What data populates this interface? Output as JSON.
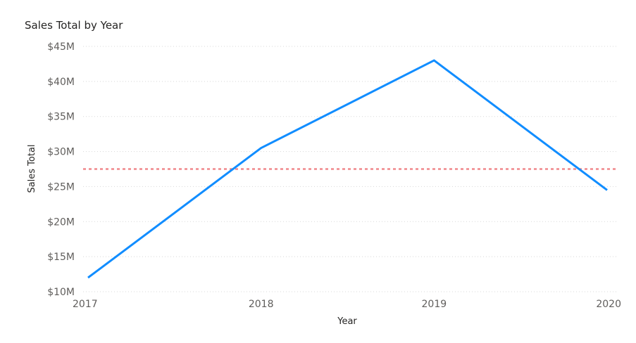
{
  "chart_data": {
    "type": "line",
    "title": "Sales Total by Year",
    "xlabel": "Year",
    "ylabel": "Sales Total",
    "categories": [
      "2017",
      "2018",
      "2019",
      "2020"
    ],
    "series": [
      {
        "values": [
          12000000,
          30500000,
          43000000,
          24500000
        ],
        "color": "#118DFF"
      }
    ],
    "reference_line": {
      "value": 27500000,
      "color": "#F0888C",
      "style": "dashed"
    },
    "ylim": [
      10000000,
      45000000
    ],
    "yticks": [
      10000000,
      15000000,
      20000000,
      25000000,
      30000000,
      35000000,
      40000000,
      45000000
    ],
    "ytick_labels": [
      "$10M",
      "$15M",
      "$20M",
      "$25M",
      "$30M",
      "$35M",
      "$40M",
      "$45M"
    ],
    "grid": true,
    "legend": "none"
  }
}
